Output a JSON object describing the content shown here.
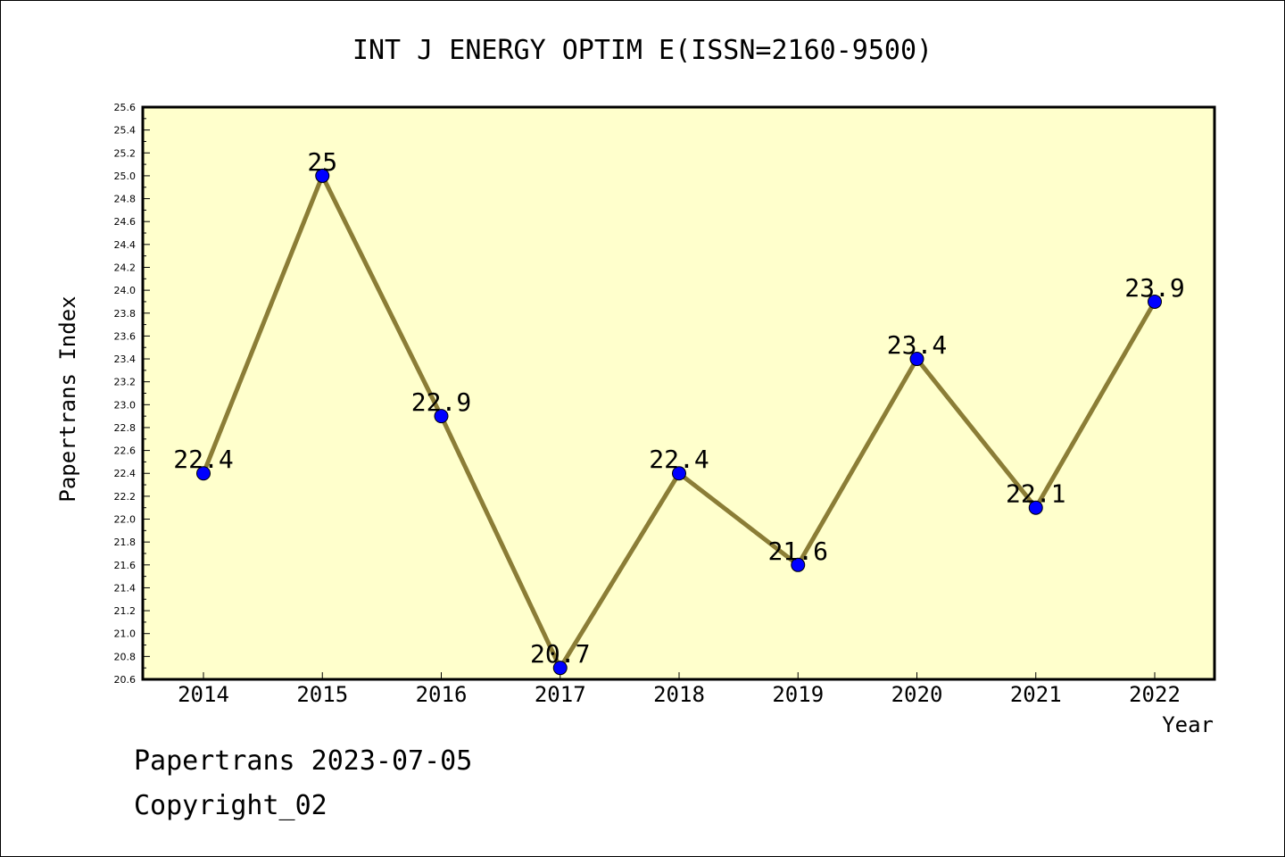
{
  "chart_data": {
    "type": "line",
    "title": "INT J ENERGY OPTIM E(ISSN=2160-9500)",
    "xlabel": "Year",
    "ylabel": "Papertrans Index",
    "categories": [
      "2014",
      "2015",
      "2016",
      "2017",
      "2018",
      "2019",
      "2020",
      "2021",
      "2022"
    ],
    "series": [
      {
        "values": [
          22.4,
          25,
          22.9,
          20.7,
          22.4,
          21.6,
          23.4,
          22.1,
          23.9
        ],
        "labels": [
          "22.4",
          "25",
          "22.9",
          "20.7",
          "22.4",
          "21.6",
          "23.4",
          "22.1",
          "23.9"
        ]
      }
    ],
    "ylim": [
      20.6,
      25.6
    ],
    "yticks": [
      "20.6",
      "20.8",
      "21.0",
      "21.2",
      "21.4",
      "21.6",
      "21.8",
      "22.0",
      "22.2",
      "22.4",
      "22.6",
      "22.8",
      "23.0",
      "23.2",
      "23.4",
      "23.6",
      "23.8",
      "24.0",
      "24.2",
      "24.4",
      "24.6",
      "24.8",
      "25.0",
      "25.2",
      "25.4",
      "25.6"
    ],
    "grid": false,
    "colors": {
      "plot_background": "#ffffcc",
      "line": "#8b7d36",
      "marker": "#0000ff"
    }
  },
  "footer": {
    "date_text": "Papertrans 2023-07-05",
    "copyright_text": "Copyright_02"
  }
}
